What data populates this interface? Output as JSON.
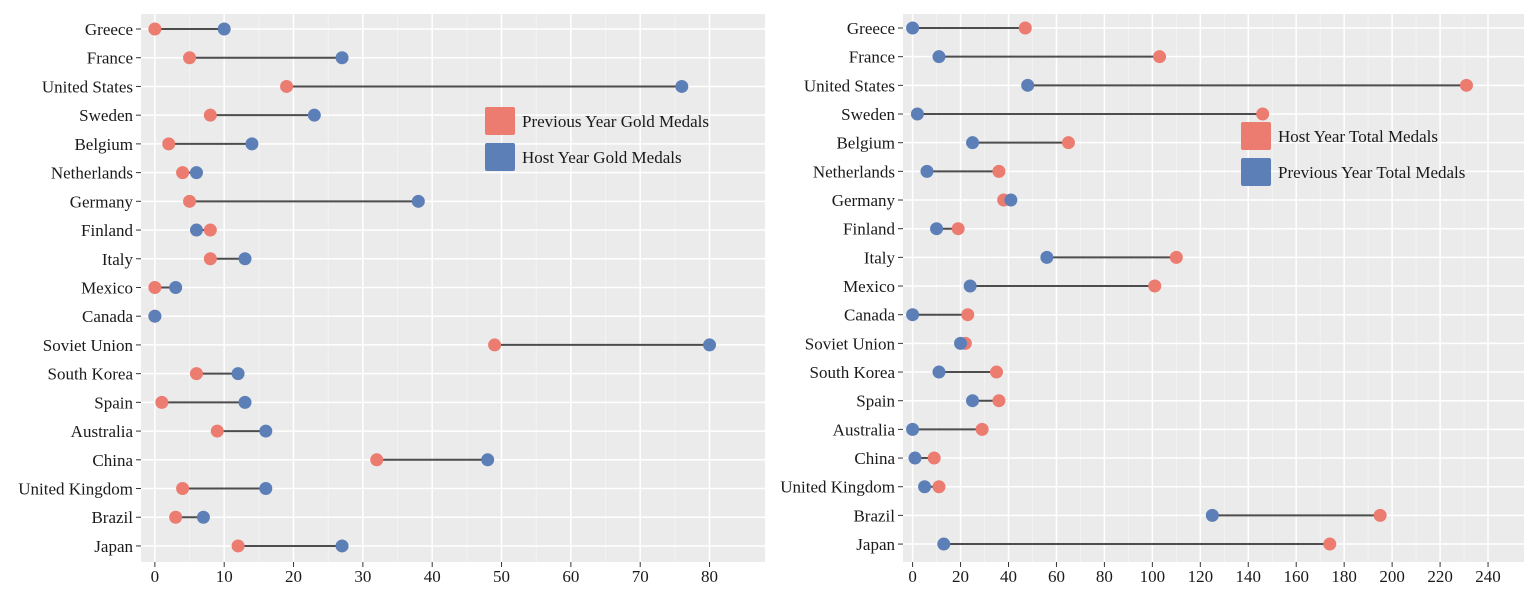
{
  "chart_data": [
    {
      "type": "dumbbell",
      "title": "",
      "xlabel": "",
      "ylabel": "",
      "xlim": [
        -2,
        88
      ],
      "xticks": [
        0,
        10,
        20,
        30,
        40,
        50,
        60,
        70,
        80
      ],
      "grid": true,
      "legend_position": "top-right",
      "categories": [
        "Greece",
        "France",
        "United States",
        "Sweden",
        "Belgium",
        "Netherlands",
        "Germany",
        "Finland",
        "Italy",
        "Mexico",
        "Canada",
        "Soviet Union",
        "South Korea",
        "Spain",
        "Australia",
        "China",
        "United Kingdom",
        "Brazil",
        "Japan"
      ],
      "series": [
        {
          "name": "Previous Year Gold Medals",
          "color": "#ec7b70",
          "values": [
            0,
            5,
            19,
            8,
            2,
            4,
            5,
            8,
            8,
            0,
            0,
            49,
            6,
            1,
            9,
            32,
            4,
            3,
            12
          ]
        },
        {
          "name": "Host Year Gold Medals",
          "color": "#5d7fb8",
          "values": [
            10,
            27,
            76,
            23,
            14,
            6,
            38,
            6,
            13,
            3,
            0,
            80,
            12,
            13,
            16,
            48,
            16,
            7,
            27
          ]
        }
      ]
    },
    {
      "type": "dumbbell",
      "title": "",
      "xlabel": "",
      "ylabel": "",
      "xlim": [
        -4,
        255
      ],
      "xticks": [
        0,
        20,
        40,
        60,
        80,
        100,
        120,
        140,
        160,
        180,
        200,
        220,
        240
      ],
      "grid": true,
      "legend_position": "top-right",
      "categories": [
        "Greece",
        "France",
        "United States",
        "Sweden",
        "Belgium",
        "Netherlands",
        "Germany",
        "Finland",
        "Italy",
        "Mexico",
        "Canada",
        "Soviet Union",
        "South Korea",
        "Spain",
        "Australia",
        "China",
        "United Kingdom",
        "Brazil",
        "Japan"
      ],
      "series": [
        {
          "name": "Host Year Total Medals",
          "color": "#ec7b70",
          "values": [
            47,
            103,
            231,
            146,
            65,
            36,
            38,
            19,
            110,
            101,
            23,
            22,
            35,
            36,
            29,
            9,
            11,
            195,
            174
          ]
        },
        {
          "name": "Previous Year Total Medals",
          "color": "#5d7fb8",
          "values": [
            0,
            11,
            48,
            2,
            25,
            6,
            41,
            10,
            56,
            24,
            0,
            20,
            11,
            25,
            0,
            1,
            5,
            125,
            13
          ]
        }
      ]
    }
  ]
}
